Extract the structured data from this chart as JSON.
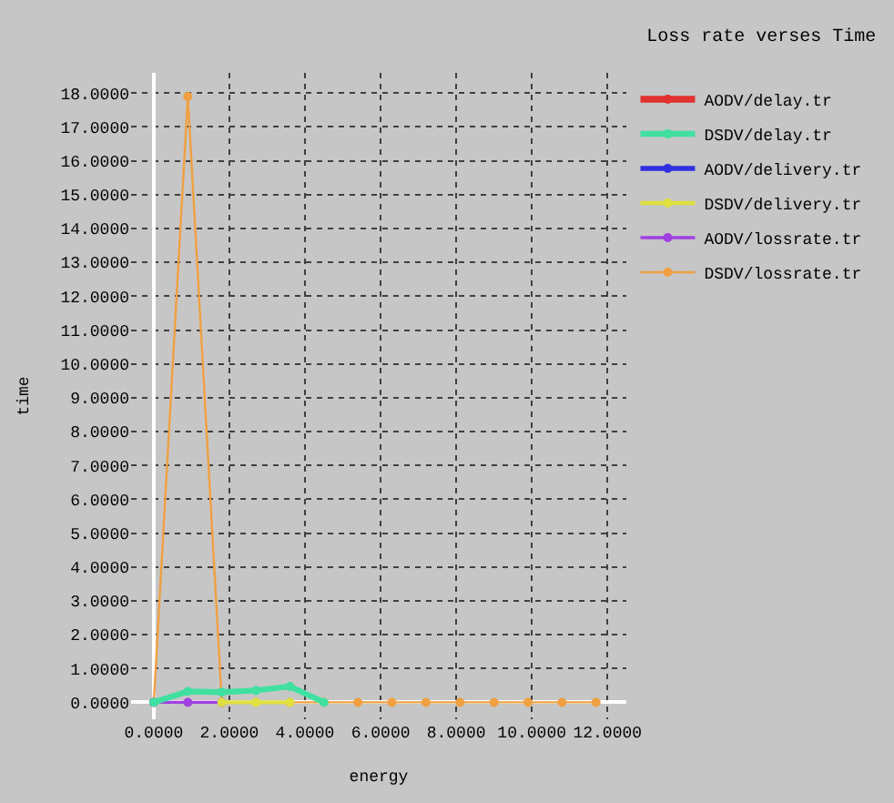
{
  "chart_data": {
    "type": "line",
    "title": "Loss rate verses Time",
    "xlabel": "energy",
    "ylabel": "time",
    "x": [
      0,
      0.9,
      1.8,
      2.7,
      3.6,
      4.5,
      5.4,
      6.3,
      7.2,
      8.1,
      9.0,
      9.9,
      10.8,
      11.7
    ],
    "series": [
      {
        "name": "AODV/delay.tr",
        "color": "#e03030",
        "values": [
          null,
          null,
          null,
          null,
          null,
          null,
          null,
          null,
          null,
          null,
          null,
          null,
          null,
          null
        ]
      },
      {
        "name": "DSDV/delay.tr",
        "color": "#40e0a0",
        "values": [
          0,
          0.32,
          0.3,
          0.35,
          0.47,
          0,
          null,
          null,
          null,
          null,
          null,
          null,
          null,
          null
        ]
      },
      {
        "name": "AODV/delivery.tr",
        "color": "#3030e0",
        "values": [
          null,
          null,
          null,
          null,
          null,
          null,
          null,
          null,
          null,
          null,
          null,
          null,
          null,
          null
        ]
      },
      {
        "name": "DSDV/delivery.tr",
        "color": "#e0e040",
        "values": [
          null,
          null,
          0,
          0,
          0,
          null,
          null,
          null,
          null,
          null,
          null,
          null,
          null,
          null
        ]
      },
      {
        "name": "AODV/lossrate.tr",
        "color": "#a040e0",
        "values": [
          0,
          0,
          0,
          null,
          null,
          null,
          null,
          null,
          null,
          null,
          null,
          null,
          null,
          null
        ]
      },
      {
        "name": "DSDV/lossrate.tr",
        "color": "#f0a040",
        "values": [
          0,
          17.9,
          0,
          0,
          0,
          0,
          0,
          0,
          0,
          0,
          0,
          0,
          0,
          0
        ]
      }
    ],
    "xlim": [
      -0.6,
      12.5
    ],
    "ylim": [
      -0.5,
      18.6
    ],
    "xticks": [
      {
        "value": 0,
        "label": "0.0000"
      },
      {
        "value": 2,
        "label": "2.0000"
      },
      {
        "value": 4,
        "label": "4.0000"
      },
      {
        "value": 6,
        "label": "6.0000"
      },
      {
        "value": 8,
        "label": "8.0000"
      },
      {
        "value": 10,
        "label": "10.0000"
      },
      {
        "value": 12,
        "label": "12.0000"
      }
    ],
    "yticks": [
      {
        "value": 0,
        "label": "0.0000"
      },
      {
        "value": 1,
        "label": "1.0000"
      },
      {
        "value": 2,
        "label": "2.0000"
      },
      {
        "value": 3,
        "label": "3.0000"
      },
      {
        "value": 4,
        "label": "4.0000"
      },
      {
        "value": 5,
        "label": "5.0000"
      },
      {
        "value": 6,
        "label": "6.0000"
      },
      {
        "value": 7,
        "label": "7.0000"
      },
      {
        "value": 8,
        "label": "8.0000"
      },
      {
        "value": 9,
        "label": "9.0000"
      },
      {
        "value": 10,
        "label": "10.0000"
      },
      {
        "value": 11,
        "label": "11.0000"
      },
      {
        "value": 12,
        "label": "12.0000"
      },
      {
        "value": 13,
        "label": "13.0000"
      },
      {
        "value": 14,
        "label": "14.0000"
      },
      {
        "value": 15,
        "label": "15.0000"
      },
      {
        "value": 16,
        "label": "16.0000"
      },
      {
        "value": 17,
        "label": "17.0000"
      },
      {
        "value": 18,
        "label": "18.0000"
      }
    ],
    "grid": true,
    "legend": "top right",
    "marker": "circle",
    "line_style": "solid"
  }
}
